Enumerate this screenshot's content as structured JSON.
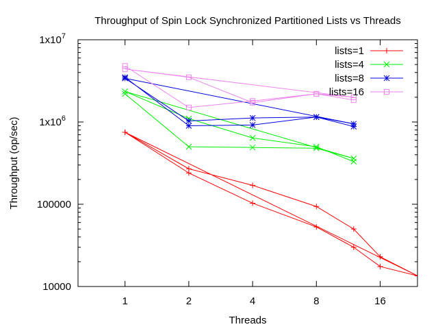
{
  "chart_data": {
    "type": "line",
    "title": "Throughput of Spin Lock Synchronized Partitioned Lists vs Threads",
    "xlabel": "Threads",
    "ylabel": "Throughput (op/sec)",
    "x_scale": "log2",
    "y_scale": "log10",
    "xlim": [
      0.6,
      24
    ],
    "ylim": [
      10000,
      10000000
    ],
    "x_ticks": [
      {
        "value": 1,
        "label": "1"
      },
      {
        "value": 2,
        "label": "2"
      },
      {
        "value": 4,
        "label": "4"
      },
      {
        "value": 8,
        "label": "8"
      },
      {
        "value": 16,
        "label": "16"
      }
    ],
    "y_ticks": [
      {
        "value": 10000,
        "label": "10000"
      },
      {
        "value": 100000,
        "label": "100000"
      },
      {
        "value": 1000000,
        "label": "1x10",
        "sup": "6"
      },
      {
        "value": 10000000,
        "label": "1x10",
        "sup": "7"
      }
    ],
    "grid": false,
    "legend_position": "top-right",
    "series": [
      {
        "name": "lists=1",
        "color": "#ff0000",
        "marker": "plus",
        "x": [
          1,
          2,
          4,
          8,
          12,
          16,
          24,
          1,
          2,
          4,
          8,
          12,
          16,
          24
        ],
        "y": [
          750000,
          240000,
          103000,
          53000,
          30000,
          17500,
          13500,
          750000,
          270000,
          170000,
          94000,
          50000,
          23000,
          13500
        ]
      },
      {
        "name": "lists=4",
        "color": "#00ee00",
        "marker": "cross",
        "x": [
          1,
          2,
          4,
          8,
          12,
          1,
          2,
          4,
          8,
          12
        ],
        "y": [
          2200000,
          500000,
          490000,
          480000,
          360000,
          2350000,
          1100000,
          640000,
          500000,
          330000
        ]
      },
      {
        "name": "lists=8",
        "color": "#0000dd",
        "marker": "star",
        "x": [
          1,
          2,
          4,
          8,
          12,
          1,
          2,
          4,
          8,
          12
        ],
        "y": [
          3500000,
          900000,
          920000,
          1150000,
          950000,
          3400000,
          1030000,
          1120000,
          1150000,
          880000
        ]
      },
      {
        "name": "lists=16",
        "color": "#ee82ee",
        "marker": "box",
        "x": [
          1,
          2,
          4,
          8,
          12,
          1,
          2,
          4,
          8,
          12
        ],
        "y": [
          4800000,
          1500000,
          1800000,
          2200000,
          2000000,
          4400000,
          3500000,
          1720000,
          2200000,
          1850000
        ]
      }
    ]
  }
}
